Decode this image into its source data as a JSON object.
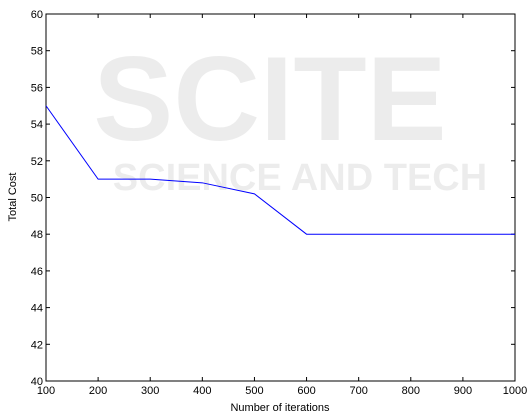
{
  "chart_data": {
    "type": "line",
    "title": "",
    "xlabel": "Number of iterations",
    "ylabel": "Total Cost",
    "xlim": [
      100,
      1000
    ],
    "ylim": [
      40,
      60
    ],
    "xticks": [
      100,
      200,
      300,
      400,
      500,
      600,
      700,
      800,
      900,
      1000
    ],
    "yticks": [
      40,
      42,
      44,
      46,
      48,
      50,
      52,
      54,
      56,
      58,
      60
    ],
    "grid": false,
    "legend": "none",
    "series": [
      {
        "color": "#0000ff",
        "x": [
          100,
          200,
          300,
          400,
          500,
          600,
          700,
          800,
          900,
          1000
        ],
        "y": [
          55,
          51,
          51,
          50.8,
          50.2,
          48,
          48,
          48,
          48,
          48
        ]
      }
    ]
  },
  "watermark": {
    "logo_text": "SCITE",
    "tagline": "SCIENCE AND TECH"
  }
}
